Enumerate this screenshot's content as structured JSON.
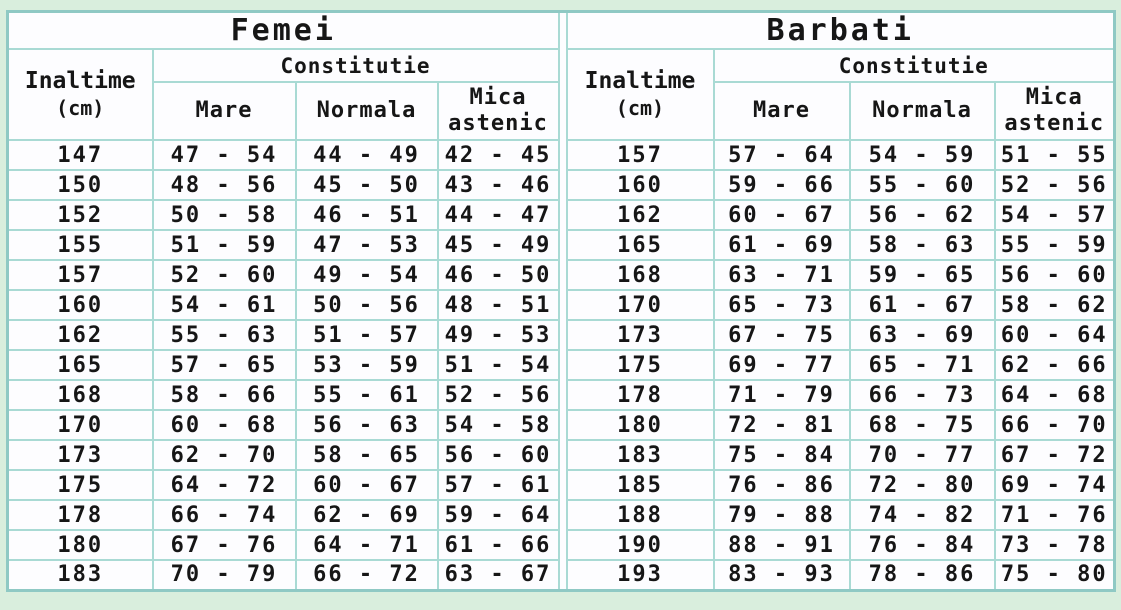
{
  "colors": {
    "page_bg": "#d9eedd",
    "grid_border": "#a9dad4",
    "outer_border": "#8fc9c4",
    "height_col_bg": "#cfc5ef",
    "cell_bg": "#fdfdff",
    "header_cell_bg": "#f6f6fa",
    "text": "#161616"
  },
  "chart_data": [
    {
      "type": "table",
      "title": "Femei",
      "height_header": "Inaltime",
      "height_unit": "(cm)",
      "group_header": "Constitutie",
      "columns": [
        "Mare",
        "Normala",
        "Mica astenic"
      ],
      "rows": [
        [
          "147",
          "47 - 54",
          "44 - 49",
          "42 - 45"
        ],
        [
          "150",
          "48 - 56",
          "45 - 50",
          "43 - 46"
        ],
        [
          "152",
          "50 - 58",
          "46 - 51",
          "44 - 47"
        ],
        [
          "155",
          "51 - 59",
          "47 - 53",
          "45 - 49"
        ],
        [
          "157",
          "52 - 60",
          "49 - 54",
          "46 - 50"
        ],
        [
          "160",
          "54 - 61",
          "50 - 56",
          "48 - 51"
        ],
        [
          "162",
          "55 - 63",
          "51 - 57",
          "49 - 53"
        ],
        [
          "165",
          "57 - 65",
          "53 - 59",
          "51 - 54"
        ],
        [
          "168",
          "58 - 66",
          "55 - 61",
          "52 - 56"
        ],
        [
          "170",
          "60 - 68",
          "56 - 63",
          "54 - 58"
        ],
        [
          "173",
          "62 - 70",
          "58 - 65",
          "56 - 60"
        ],
        [
          "175",
          "64 - 72",
          "60 - 67",
          "57 - 61"
        ],
        [
          "178",
          "66 - 74",
          "62 - 69",
          "59 - 64"
        ],
        [
          "180",
          "67 - 76",
          "64 - 71",
          "61 - 66"
        ],
        [
          "183",
          "70 - 79",
          "66 - 72",
          "63 - 67"
        ]
      ]
    },
    {
      "type": "table",
      "title": "Barbati",
      "height_header": "Inaltime",
      "height_unit": "(cm)",
      "group_header": "Constitutie",
      "columns": [
        "Mare",
        "Normala",
        "Mica astenic"
      ],
      "rows": [
        [
          "157",
          "57 - 64",
          "54 - 59",
          "51 - 55"
        ],
        [
          "160",
          "59 - 66",
          "55 - 60",
          "52 - 56"
        ],
        [
          "162",
          "60 - 67",
          "56 - 62",
          "54 - 57"
        ],
        [
          "165",
          "61 - 69",
          "58 - 63",
          "55 - 59"
        ],
        [
          "168",
          "63 - 71",
          "59 - 65",
          "56 - 60"
        ],
        [
          "170",
          "65 - 73",
          "61 - 67",
          "58 - 62"
        ],
        [
          "173",
          "67 - 75",
          "63 - 69",
          "60 - 64"
        ],
        [
          "175",
          "69 - 77",
          "65 - 71",
          "62 - 66"
        ],
        [
          "178",
          "71 - 79",
          "66 - 73",
          "64 - 68"
        ],
        [
          "180",
          "72 - 81",
          "68 - 75",
          "66 - 70"
        ],
        [
          "183",
          "75 - 84",
          "70 - 77",
          "67 - 72"
        ],
        [
          "185",
          "76 - 86",
          "72 - 80",
          "69 - 74"
        ],
        [
          "188",
          "79 - 88",
          "74 - 82",
          "71 - 76"
        ],
        [
          "190",
          "88 - 91",
          "76 - 84",
          "73 - 78"
        ],
        [
          "193",
          "83 - 93",
          "78 - 86",
          "75 - 80"
        ]
      ]
    }
  ]
}
